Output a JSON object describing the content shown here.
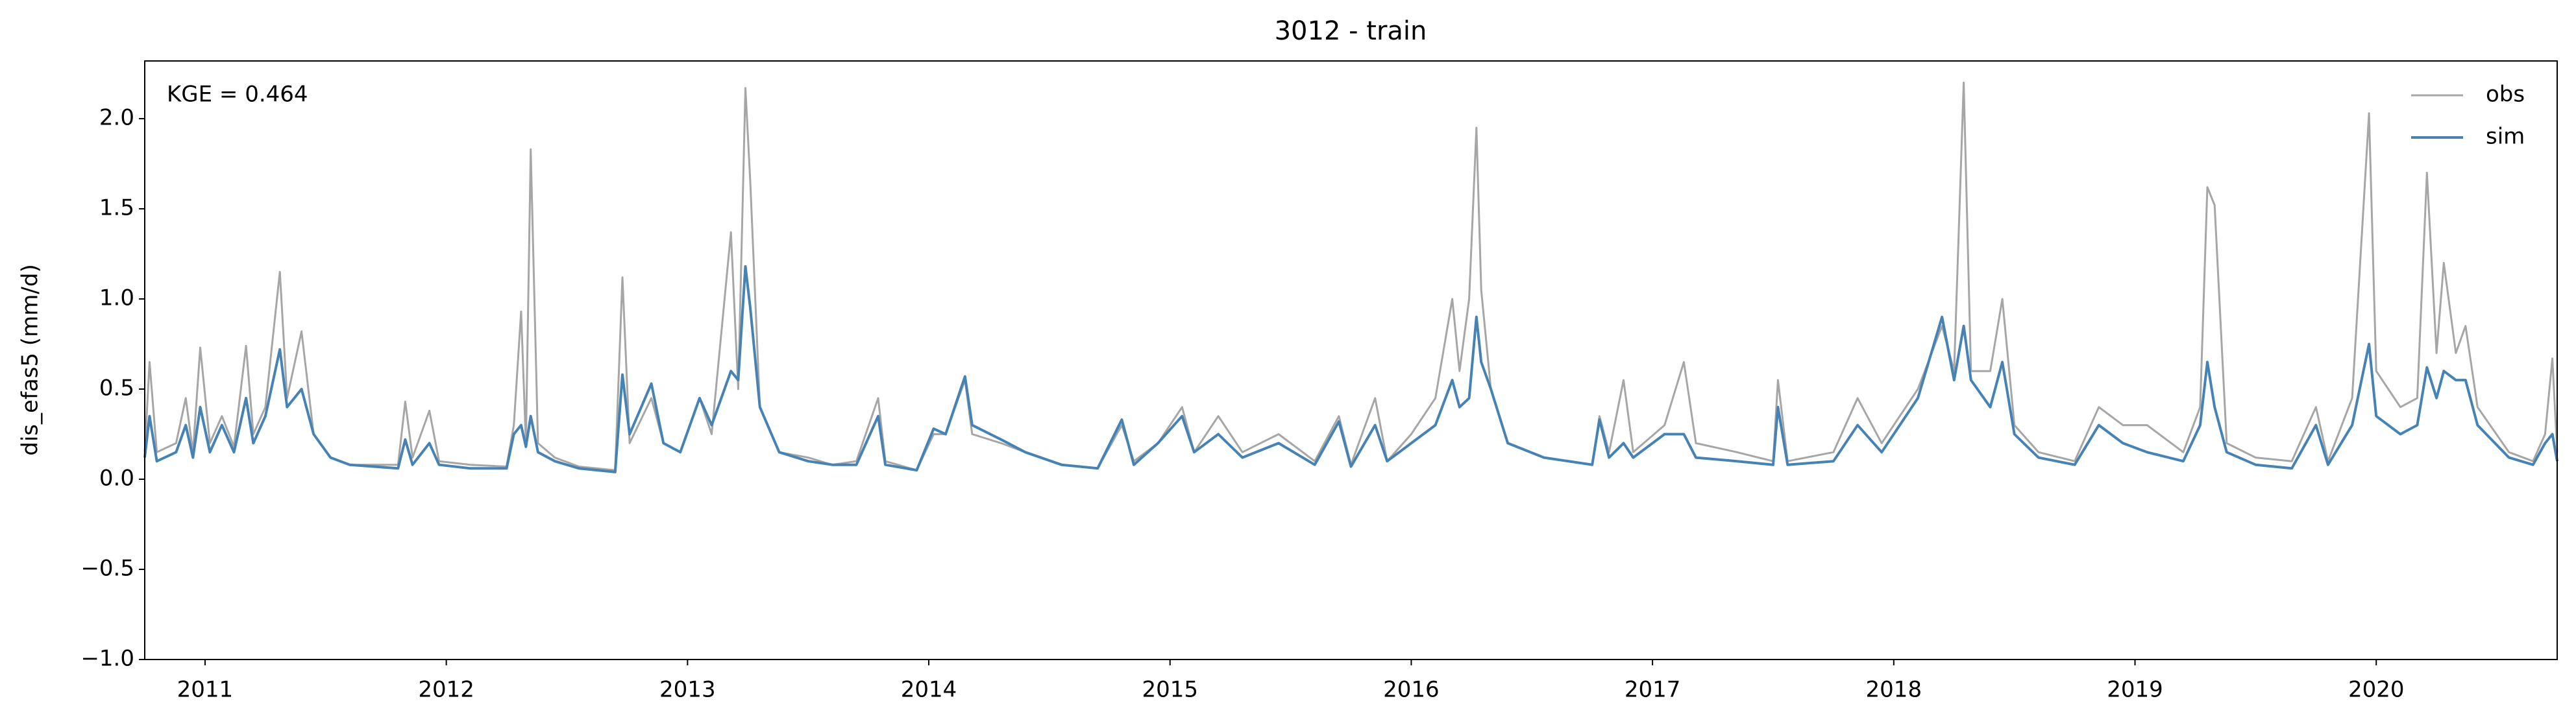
{
  "chart_data": {
    "type": "line",
    "title": "3012 - train",
    "y_label": "dis_efas5 (mm/d)",
    "annotation": "KGE = 0.464",
    "legend": "upper right",
    "x": [
      2010.75,
      2010.77,
      2010.8,
      2010.88,
      2010.92,
      2010.95,
      2010.98,
      2011.02,
      2011.07,
      2011.12,
      2011.17,
      2011.2,
      2011.25,
      2011.31,
      2011.34,
      2011.4,
      2011.45,
      2011.52,
      2011.6,
      2011.8,
      2011.83,
      2011.86,
      2011.93,
      2011.97,
      2012.1,
      2012.25,
      2012.28,
      2012.31,
      2012.33,
      2012.35,
      2012.38,
      2012.45,
      2012.55,
      2012.7,
      2012.73,
      2012.76,
      2012.85,
      2012.9,
      2012.97,
      2013.05,
      2013.1,
      2013.18,
      2013.21,
      2013.24,
      2013.26,
      2013.3,
      2013.38,
      2013.5,
      2013.6,
      2013.7,
      2013.79,
      2013.82,
      2013.95,
      2014.02,
      2014.07,
      2014.15,
      2014.18,
      2014.3,
      2014.4,
      2014.55,
      2014.7,
      2014.8,
      2014.85,
      2014.95,
      2015.05,
      2015.1,
      2015.2,
      2015.3,
      2015.45,
      2015.6,
      2015.7,
      2015.75,
      2015.85,
      2015.9,
      2016.0,
      2016.1,
      2016.17,
      2016.2,
      2016.24,
      2016.27,
      2016.29,
      2016.33,
      2016.4,
      2016.55,
      2016.75,
      2016.78,
      2016.82,
      2016.88,
      2016.92,
      2017.05,
      2017.13,
      2017.18,
      2017.35,
      2017.5,
      2017.52,
      2017.56,
      2017.75,
      2017.85,
      2017.95,
      2018.1,
      2018.2,
      2018.25,
      2018.29,
      2018.32,
      2018.4,
      2018.45,
      2018.5,
      2018.6,
      2018.75,
      2018.85,
      2018.95,
      2019.05,
      2019.2,
      2019.27,
      2019.3,
      2019.33,
      2019.38,
      2019.5,
      2019.65,
      2019.75,
      2019.8,
      2019.9,
      2019.97,
      2020.0,
      2020.1,
      2020.17,
      2020.21,
      2020.25,
      2020.28,
      2020.33,
      2020.37,
      2020.42,
      2020.55,
      2020.65,
      2020.7,
      2020.73,
      2020.75
    ],
    "series": [
      {
        "name": "obs",
        "color": "#a6a6a6",
        "values": [
          0.15,
          0.65,
          0.15,
          0.2,
          0.45,
          0.15,
          0.73,
          0.2,
          0.35,
          0.18,
          0.74,
          0.25,
          0.4,
          1.15,
          0.45,
          0.82,
          0.25,
          0.12,
          0.08,
          0.08,
          0.43,
          0.12,
          0.38,
          0.1,
          0.08,
          0.07,
          0.3,
          0.93,
          0.2,
          1.83,
          0.2,
          0.12,
          0.07,
          0.05,
          1.12,
          0.2,
          0.45,
          0.2,
          0.15,
          0.45,
          0.25,
          1.37,
          0.5,
          2.17,
          1.65,
          0.4,
          0.15,
          0.12,
          0.08,
          0.1,
          0.45,
          0.1,
          0.05,
          0.25,
          0.25,
          0.55,
          0.25,
          0.2,
          0.15,
          0.08,
          0.06,
          0.3,
          0.1,
          0.2,
          0.4,
          0.15,
          0.35,
          0.15,
          0.25,
          0.1,
          0.35,
          0.08,
          0.45,
          0.1,
          0.25,
          0.45,
          1.0,
          0.6,
          1.0,
          1.95,
          1.05,
          0.5,
          0.2,
          0.12,
          0.08,
          0.35,
          0.15,
          0.55,
          0.15,
          0.3,
          0.65,
          0.2,
          0.15,
          0.1,
          0.55,
          0.1,
          0.15,
          0.45,
          0.2,
          0.5,
          0.85,
          0.6,
          2.2,
          0.6,
          0.6,
          1.0,
          0.3,
          0.15,
          0.1,
          0.4,
          0.3,
          0.3,
          0.15,
          0.4,
          1.62,
          1.52,
          0.2,
          0.12,
          0.1,
          0.4,
          0.1,
          0.45,
          2.03,
          0.6,
          0.4,
          0.45,
          1.7,
          0.7,
          1.2,
          0.7,
          0.85,
          0.4,
          0.15,
          0.1,
          0.25,
          0.67,
          0.15
        ]
      },
      {
        "name": "sim",
        "color": "#4682b4",
        "values": [
          0.12,
          0.35,
          0.1,
          0.15,
          0.3,
          0.12,
          0.4,
          0.15,
          0.3,
          0.15,
          0.45,
          0.2,
          0.35,
          0.72,
          0.4,
          0.5,
          0.25,
          0.12,
          0.08,
          0.06,
          0.22,
          0.08,
          0.2,
          0.08,
          0.06,
          0.06,
          0.25,
          0.3,
          0.18,
          0.35,
          0.15,
          0.1,
          0.06,
          0.04,
          0.58,
          0.25,
          0.53,
          0.2,
          0.15,
          0.45,
          0.3,
          0.6,
          0.55,
          1.18,
          0.95,
          0.4,
          0.15,
          0.1,
          0.08,
          0.08,
          0.35,
          0.08,
          0.05,
          0.28,
          0.25,
          0.57,
          0.3,
          0.22,
          0.15,
          0.08,
          0.06,
          0.33,
          0.08,
          0.2,
          0.35,
          0.15,
          0.25,
          0.12,
          0.2,
          0.08,
          0.32,
          0.07,
          0.3,
          0.1,
          0.2,
          0.3,
          0.55,
          0.4,
          0.45,
          0.9,
          0.65,
          0.5,
          0.2,
          0.12,
          0.08,
          0.33,
          0.12,
          0.2,
          0.12,
          0.25,
          0.25,
          0.12,
          0.1,
          0.08,
          0.4,
          0.08,
          0.1,
          0.3,
          0.15,
          0.45,
          0.9,
          0.55,
          0.85,
          0.55,
          0.4,
          0.65,
          0.25,
          0.12,
          0.08,
          0.3,
          0.2,
          0.15,
          0.1,
          0.3,
          0.65,
          0.4,
          0.15,
          0.08,
          0.06,
          0.3,
          0.08,
          0.3,
          0.75,
          0.35,
          0.25,
          0.3,
          0.62,
          0.45,
          0.6,
          0.55,
          0.55,
          0.3,
          0.12,
          0.08,
          0.2,
          0.25,
          0.1
        ]
      }
    ],
    "xlim": [
      2010.75,
      2020.75
    ],
    "xticks": [
      2011,
      2012,
      2013,
      2014,
      2015,
      2016,
      2017,
      2018,
      2019,
      2020
    ],
    "ylim": [
      -1,
      2.32
    ],
    "yticks": [
      {
        "value": -1,
        "label": "−1.0"
      },
      {
        "value": -0.5,
        "label": "−0.5"
      },
      {
        "value": 0,
        "label": "0.0"
      },
      {
        "value": 0.5,
        "label": "0.5"
      },
      {
        "value": 1,
        "label": "1.0"
      },
      {
        "value": 1.5,
        "label": "1.5"
      },
      {
        "value": 2,
        "label": "2.0"
      }
    ],
    "grid": false
  }
}
